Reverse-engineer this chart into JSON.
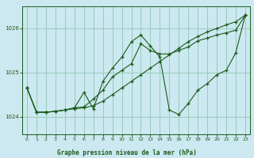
{
  "title": "Graphe pression niveau de la mer (hPa)",
  "bg_color": "#cce8f0",
  "grid_color": "#99ccbb",
  "line_color": "#1a5c1a",
  "xlim": [
    -0.5,
    23.5
  ],
  "ylim": [
    1023.6,
    1026.5
  ],
  "yticks": [
    1024,
    1025,
    1026
  ],
  "xticks": [
    0,
    1,
    2,
    3,
    4,
    5,
    6,
    7,
    8,
    9,
    10,
    11,
    12,
    13,
    14,
    15,
    16,
    17,
    18,
    19,
    20,
    21,
    22,
    23
  ],
  "series": [
    [
      1024.65,
      1024.1,
      1024.1,
      1024.12,
      1024.15,
      1024.18,
      1024.2,
      1024.25,
      1024.35,
      1024.5,
      1024.65,
      1024.8,
      1024.95,
      1025.1,
      1025.25,
      1025.4,
      1025.55,
      1025.7,
      1025.82,
      1025.92,
      1026.0,
      1026.08,
      1026.15,
      1026.3
    ],
    [
      1024.65,
      1024.1,
      1024.1,
      1024.12,
      1024.15,
      1024.2,
      1024.55,
      1024.18,
      1024.8,
      1025.1,
      1025.35,
      1025.7,
      1025.85,
      1025.6,
      1025.35,
      1024.15,
      1024.05,
      1024.3,
      1024.6,
      1024.75,
      1024.95,
      1025.05,
      1025.45,
      1026.3
    ],
    [
      1024.65,
      1024.1,
      1024.1,
      1024.12,
      1024.15,
      1024.2,
      1024.22,
      1024.4,
      1024.6,
      1024.9,
      1025.05,
      1025.2,
      1025.65,
      1025.5,
      1025.42,
      1025.42,
      1025.5,
      1025.58,
      1025.72,
      1025.78,
      1025.85,
      1025.9,
      1025.96,
      1026.3
    ]
  ]
}
